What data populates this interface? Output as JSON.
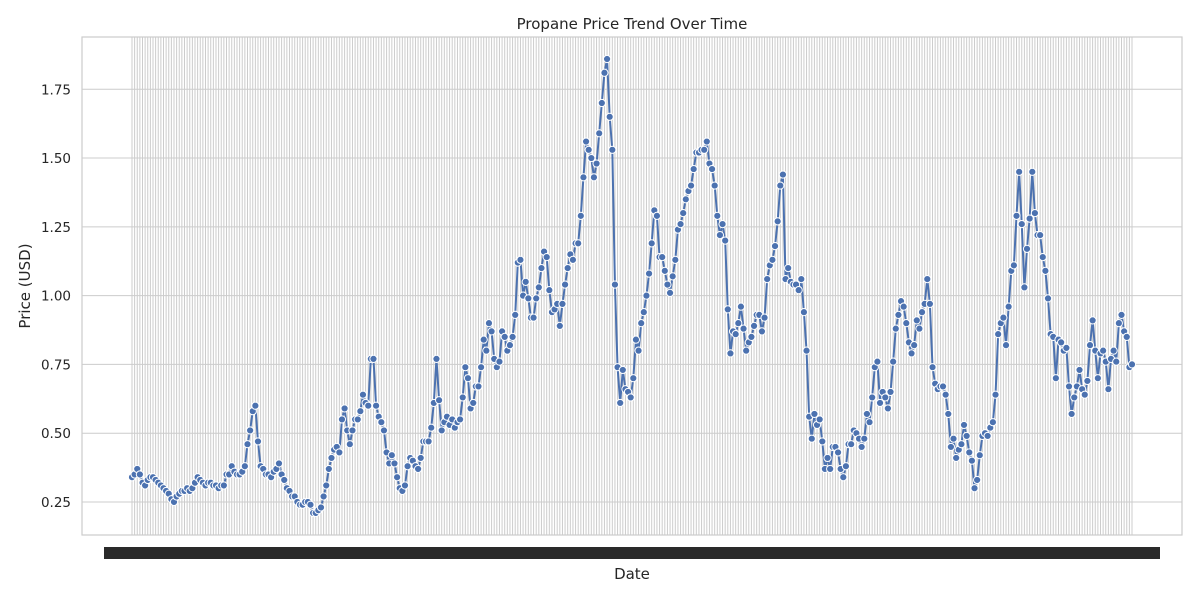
{
  "chart_data": {
    "type": "line",
    "title": "Propane Price Trend Over Time",
    "xlabel": "Date",
    "ylabel": "Price (USD)",
    "ylim": [
      0.13,
      1.94
    ],
    "yticks": [
      0.25,
      0.5,
      0.75,
      1.0,
      1.25,
      1.5,
      1.75
    ],
    "ytick_labels": [
      "0.25",
      "0.50",
      "0.75",
      "1.00",
      "1.25",
      "1.50",
      "1.75"
    ],
    "grid": true,
    "x_tick_labels_note": "x tick labels are overlapping and illegible",
    "series": [
      {
        "marker": "circle",
        "color": "#4c72b0",
        "values": [
          0.34,
          0.35,
          0.37,
          0.35,
          0.32,
          0.31,
          0.33,
          0.34,
          0.34,
          0.33,
          0.32,
          0.31,
          0.3,
          0.29,
          0.28,
          0.26,
          0.25,
          0.27,
          0.28,
          0.29,
          0.29,
          0.3,
          0.29,
          0.3,
          0.32,
          0.34,
          0.33,
          0.32,
          0.31,
          0.32,
          0.32,
          0.31,
          0.31,
          0.3,
          0.31,
          0.31,
          0.35,
          0.35,
          0.38,
          0.36,
          0.35,
          0.35,
          0.36,
          0.38,
          0.46,
          0.51,
          0.58,
          0.6,
          0.47,
          0.38,
          0.37,
          0.35,
          0.35,
          0.34,
          0.36,
          0.37,
          0.39,
          0.35,
          0.33,
          0.3,
          0.29,
          0.27,
          0.27,
          0.25,
          0.24,
          0.24,
          0.25,
          0.25,
          0.24,
          0.21,
          0.21,
          0.22,
          0.23,
          0.27,
          0.31,
          0.37,
          0.41,
          0.44,
          0.45,
          0.43,
          0.55,
          0.59,
          0.51,
          0.46,
          0.51,
          0.55,
          0.55,
          0.58,
          0.64,
          0.61,
          0.6,
          0.77,
          0.77,
          0.6,
          0.56,
          0.54,
          0.51,
          0.43,
          0.39,
          0.42,
          0.39,
          0.34,
          0.3,
          0.29,
          0.31,
          0.38,
          0.41,
          0.4,
          0.38,
          0.37,
          0.41,
          0.47,
          0.47,
          0.47,
          0.52,
          0.61,
          0.77,
          0.62,
          0.51,
          0.54,
          0.56,
          0.53,
          0.55,
          0.52,
          0.54,
          0.55,
          0.63,
          0.74,
          0.7,
          0.59,
          0.61,
          0.67,
          0.67,
          0.74,
          0.84,
          0.8,
          0.9,
          0.87,
          0.77,
          0.74,
          0.76,
          0.87,
          0.85,
          0.8,
          0.82,
          0.85,
          0.93,
          1.12,
          1.13,
          1.0,
          1.05,
          0.99,
          0.92,
          0.92,
          0.99,
          1.03,
          1.1,
          1.16,
          1.14,
          1.02,
          0.94,
          0.95,
          0.97,
          0.89,
          0.97,
          1.04,
          1.1,
          1.15,
          1.13,
          1.19,
          1.19,
          1.29,
          1.43,
          1.56,
          1.53,
          1.5,
          1.43,
          1.48,
          1.59,
          1.7,
          1.81,
          1.86,
          1.65,
          1.53,
          1.04,
          0.74,
          0.61,
          0.73,
          0.66,
          0.65,
          0.63,
          0.7,
          0.84,
          0.8,
          0.9,
          0.94,
          1.0,
          1.08,
          1.19,
          1.31,
          1.29,
          1.14,
          1.14,
          1.09,
          1.04,
          1.01,
          1.07,
          1.13,
          1.24,
          1.26,
          1.3,
          1.35,
          1.38,
          1.4,
          1.46,
          1.52,
          1.52,
          1.53,
          1.53,
          1.56,
          1.48,
          1.46,
          1.4,
          1.29,
          1.22,
          1.26,
          1.2,
          0.95,
          0.79,
          0.87,
          0.86,
          0.9,
          0.96,
          0.88,
          0.8,
          0.83,
          0.85,
          0.89,
          0.93,
          0.93,
          0.87,
          0.92,
          1.06,
          1.11,
          1.13,
          1.18,
          1.27,
          1.4,
          1.44,
          1.06,
          1.1,
          1.05,
          1.04,
          1.04,
          1.02,
          1.06,
          0.94,
          0.8,
          0.56,
          0.48,
          0.57,
          0.53,
          0.55,
          0.47,
          0.37,
          0.41,
          0.37,
          0.45,
          0.45,
          0.43,
          0.37,
          0.34,
          0.38,
          0.46,
          0.46,
          0.51,
          0.5,
          0.48,
          0.45,
          0.48,
          0.57,
          0.54,
          0.63,
          0.74,
          0.76,
          0.61,
          0.65,
          0.63,
          0.59,
          0.65,
          0.76,
          0.88,
          0.93,
          0.98,
          0.96,
          0.9,
          0.83,
          0.79,
          0.82,
          0.91,
          0.88,
          0.94,
          0.97,
          1.06,
          0.97,
          0.74,
          0.68,
          0.66,
          0.67,
          0.67,
          0.64,
          0.57,
          0.45,
          0.48,
          0.41,
          0.44,
          0.46,
          0.53,
          0.49,
          0.43,
          0.4,
          0.3,
          0.33,
          0.42,
          0.49,
          0.5,
          0.49,
          0.52,
          0.54,
          0.64,
          0.86,
          0.9,
          0.92,
          0.82,
          0.96,
          1.09,
          1.11,
          1.29,
          1.45,
          1.26,
          1.03,
          1.17,
          1.28,
          1.45,
          1.3,
          1.22,
          1.22,
          1.14,
          1.09,
          0.99,
          0.86,
          0.85,
          0.7,
          0.84,
          0.83,
          0.8,
          0.81,
          0.67,
          0.57,
          0.63,
          0.67,
          0.73,
          0.66,
          0.64,
          0.69,
          0.82,
          0.91,
          0.8,
          0.7,
          0.79,
          0.8,
          0.76,
          0.66,
          0.77,
          0.8,
          0.76,
          0.9,
          0.93,
          0.87,
          0.85,
          0.74,
          0.75
        ]
      }
    ]
  }
}
